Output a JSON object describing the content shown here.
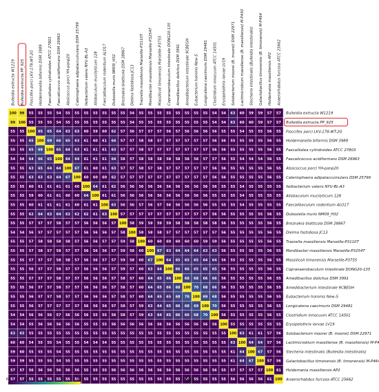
{
  "chart_data": {
    "type": "heatmap",
    "title": "",
    "xlabel": "",
    "ylabel": "",
    "panel_label": "(a)",
    "labels": [
      "Bulleidia extructa W1219",
      "Bulleidia extructa PP_925",
      "Floccifex porci LKV-178-WT-2G",
      "Holdemanella biformis DSM 3989",
      "Faecalitalea cylindroides ATCC 27803",
      "Faecalicoccus acidiformans DSM 26963",
      "Absicoccus porci YH-panp20",
      "Catenisphaera adipataccumulans DSM 25799",
      "Ileibacterium valens NYU-BL-A3",
      "Allobaculum mucilyticum 128",
      "Faecalibaculum rodentium ALO17",
      "Dubosiella muris NM09_H32",
      "Breznakia blatticola DSM 28867",
      "Dielma fastidiosa JC13",
      "Traorella massiliensis Marseille-P3110T",
      "Merdibacter massiliensis Marseille-P3254T",
      "Massilicoli timonensis Marseille-P3755",
      "Copranaerobaculum intestinale DONG20-135",
      "Amedibacillus dolichus DSM 3991",
      "Amedibacterium intestinale 9CBEGH",
      "Eubacterium hominis New-5",
      "Longicatena caecimuris DSM 29481",
      "Clostridium innocuum ATCC 14501",
      "Erysipelothrix larvae LV19",
      "Solobacterium moorei (B. moorei) DSM 22971",
      "Lactimicrobium massiliense (B. massiliensis) M-P430",
      "Stecheria intestinalis (Bulleidia intestinalis)",
      "Galactobacillus timonensis (B. timonensis) M-P464",
      "Holdemania massiliensis AP2",
      "Anaerorhabdus furcosa ATCC 25662"
    ],
    "matrix": [
      [
        100,
        99,
        55,
        55,
        55,
        54,
        55,
        55,
        55,
        55,
        55,
        55,
        55,
        54,
        55,
        55,
        55,
        55,
        55,
        55,
        55,
        55,
        54,
        54,
        63,
        60,
        59,
        59,
        57,
        57
      ],
      [
        99,
        100,
        55,
        55,
        55,
        54,
        55,
        55,
        55,
        55,
        55,
        55,
        55,
        54,
        55,
        55,
        55,
        55,
        55,
        55,
        55,
        55,
        54,
        54,
        63,
        60,
        60,
        59,
        57,
        57
      ],
      [
        55,
        55,
        100,
        65,
        65,
        64,
        63,
        63,
        60,
        59,
        60,
        62,
        57,
        56,
        57,
        57,
        57,
        56,
        57,
        56,
        56,
        56,
        56,
        55,
        55,
        54,
        55,
        55,
        56,
        55
      ],
      [
        55,
        55,
        65,
        100,
        69,
        66,
        65,
        63,
        61,
        60,
        61,
        64,
        57,
        57,
        58,
        58,
        57,
        57,
        57,
        57,
        57,
        57,
        56,
        56,
        55,
        55,
        55,
        55,
        56,
        55
      ],
      [
        55,
        55,
        65,
        69,
        100,
        65,
        64,
        63,
        61,
        61,
        61,
        63,
        57,
        57,
        58,
        57,
        57,
        57,
        57,
        57,
        57,
        57,
        56,
        56,
        55,
        55,
        55,
        55,
        56,
        55
      ],
      [
        54,
        54,
        64,
        66,
        65,
        100,
        64,
        64,
        61,
        61,
        61,
        64,
        58,
        57,
        58,
        58,
        58,
        58,
        58,
        58,
        58,
        57,
        57,
        56,
        55,
        54,
        54,
        54,
        56,
        55
      ],
      [
        55,
        55,
        63,
        65,
        64,
        64,
        100,
        67,
        61,
        60,
        61,
        63,
        57,
        57,
        58,
        57,
        58,
        57,
        57,
        57,
        57,
        57,
        56,
        56,
        55,
        55,
        55,
        55,
        56,
        55
      ],
      [
        55,
        55,
        63,
        63,
        63,
        64,
        67,
        100,
        60,
        60,
        60,
        62,
        57,
        57,
        57,
        57,
        57,
        57,
        57,
        57,
        57,
        57,
        56,
        56,
        55,
        55,
        55,
        55,
        56,
        55
      ],
      [
        55,
        55,
        60,
        61,
        61,
        61,
        61,
        60,
        100,
        64,
        61,
        62,
        56,
        56,
        56,
        56,
        56,
        56,
        56,
        56,
        56,
        56,
        56,
        55,
        55,
        54,
        55,
        55,
        55,
        55
      ],
      [
        55,
        55,
        59,
        60,
        61,
        61,
        60,
        60,
        64,
        100,
        61,
        61,
        56,
        56,
        56,
        56,
        56,
        56,
        56,
        56,
        56,
        56,
        55,
        55,
        55,
        54,
        55,
        55,
        55,
        55
      ],
      [
        55,
        55,
        60,
        61,
        61,
        61,
        61,
        60,
        61,
        61,
        100,
        63,
        56,
        56,
        57,
        56,
        57,
        56,
        56,
        56,
        56,
        56,
        55,
        55,
        55,
        54,
        55,
        55,
        55,
        55
      ],
      [
        55,
        55,
        62,
        64,
        63,
        64,
        63,
        62,
        62,
        61,
        63,
        100,
        57,
        57,
        57,
        57,
        57,
        57,
        57,
        57,
        57,
        57,
        56,
        56,
        55,
        55,
        55,
        55,
        56,
        55
      ],
      [
        55,
        55,
        57,
        57,
        57,
        58,
        57,
        57,
        56,
        56,
        56,
        57,
        100,
        58,
        59,
        59,
        59,
        59,
        58,
        58,
        58,
        58,
        58,
        56,
        55,
        55,
        55,
        55,
        56,
        55
      ],
      [
        54,
        54,
        56,
        57,
        57,
        57,
        57,
        57,
        56,
        56,
        56,
        57,
        58,
        100,
        58,
        58,
        58,
        57,
        57,
        57,
        57,
        57,
        57,
        56,
        55,
        55,
        55,
        55,
        56,
        55
      ],
      [
        55,
        55,
        57,
        58,
        58,
        58,
        58,
        57,
        56,
        56,
        57,
        57,
        59,
        58,
        100,
        60,
        60,
        60,
        60,
        60,
        60,
        59,
        59,
        56,
        55,
        55,
        55,
        55,
        56,
        55
      ],
      [
        55,
        55,
        57,
        58,
        57,
        58,
        57,
        57,
        56,
        56,
        56,
        57,
        59,
        58,
        60,
        100,
        67,
        63,
        64,
        64,
        64,
        63,
        63,
        56,
        55,
        55,
        55,
        55,
        56,
        55
      ],
      [
        55,
        55,
        57,
        57,
        57,
        58,
        58,
        57,
        56,
        56,
        57,
        57,
        59,
        58,
        60,
        67,
        100,
        64,
        65,
        65,
        65,
        64,
        64,
        56,
        55,
        55,
        55,
        55,
        56,
        55
      ],
      [
        55,
        55,
        56,
        57,
        57,
        58,
        57,
        57,
        56,
        56,
        56,
        57,
        59,
        57,
        60,
        63,
        64,
        100,
        66,
        66,
        65,
        65,
        65,
        56,
        55,
        55,
        55,
        55,
        56,
        55
      ],
      [
        55,
        55,
        57,
        57,
        57,
        58,
        57,
        57,
        56,
        56,
        56,
        57,
        58,
        57,
        60,
        64,
        65,
        66,
        100,
        68,
        68,
        66,
        66,
        56,
        55,
        55,
        55,
        55,
        56,
        55
      ],
      [
        55,
        55,
        56,
        57,
        57,
        58,
        57,
        57,
        56,
        56,
        56,
        57,
        58,
        57,
        60,
        64,
        65,
        66,
        68,
        100,
        70,
        68,
        66,
        56,
        55,
        55,
        55,
        55,
        56,
        55
      ],
      [
        55,
        55,
        56,
        57,
        57,
        58,
        57,
        57,
        56,
        56,
        56,
        57,
        58,
        57,
        60,
        64,
        65,
        65,
        68,
        70,
        100,
        69,
        68,
        56,
        55,
        55,
        55,
        55,
        56,
        55
      ],
      [
        55,
        55,
        56,
        57,
        57,
        57,
        57,
        57,
        56,
        56,
        56,
        57,
        58,
        57,
        59,
        63,
        64,
        65,
        66,
        68,
        69,
        100,
        70,
        56,
        55,
        55,
        55,
        55,
        56,
        55
      ],
      [
        54,
        54,
        56,
        56,
        56,
        57,
        56,
        56,
        56,
        55,
        55,
        56,
        58,
        57,
        59,
        63,
        64,
        65,
        66,
        66,
        68,
        70,
        100,
        56,
        55,
        55,
        55,
        55,
        56,
        55
      ],
      [
        54,
        54,
        55,
        56,
        56,
        56,
        56,
        56,
        55,
        55,
        55,
        56,
        56,
        56,
        56,
        56,
        56,
        56,
        56,
        56,
        56,
        56,
        56,
        100,
        55,
        55,
        55,
        55,
        55,
        55
      ],
      [
        63,
        63,
        55,
        55,
        55,
        55,
        55,
        55,
        55,
        55,
        55,
        55,
        55,
        55,
        55,
        55,
        55,
        55,
        55,
        55,
        55,
        55,
        55,
        55,
        100,
        63,
        61,
        61,
        57,
        56
      ],
      [
        60,
        60,
        54,
        55,
        55,
        54,
        55,
        55,
        54,
        54,
        54,
        55,
        55,
        55,
        55,
        55,
        55,
        55,
        55,
        55,
        55,
        55,
        55,
        55,
        63,
        100,
        64,
        64,
        57,
        56
      ],
      [
        59,
        60,
        55,
        55,
        55,
        54,
        55,
        55,
        55,
        55,
        55,
        55,
        55,
        55,
        55,
        55,
        55,
        55,
        55,
        55,
        55,
        55,
        55,
        55,
        61,
        64,
        100,
        67,
        57,
        56
      ],
      [
        59,
        59,
        55,
        55,
        55,
        54,
        55,
        55,
        55,
        55,
        55,
        55,
        55,
        55,
        55,
        55,
        55,
        55,
        55,
        55,
        55,
        55,
        55,
        55,
        61,
        64,
        67,
        100,
        57,
        56
      ],
      [
        57,
        57,
        56,
        56,
        56,
        56,
        56,
        56,
        55,
        55,
        55,
        56,
        56,
        56,
        56,
        56,
        56,
        56,
        56,
        56,
        56,
        56,
        56,
        55,
        57,
        57,
        57,
        57,
        100,
        61
      ],
      [
        57,
        57,
        55,
        55,
        55,
        55,
        55,
        55,
        55,
        55,
        55,
        55,
        55,
        55,
        55,
        55,
        55,
        55,
        55,
        55,
        55,
        55,
        55,
        55,
        56,
        56,
        56,
        56,
        61,
        100
      ]
    ],
    "highlighted": [
      "Bulleidia extructa PP_925"
    ],
    "color_scale": {
      "min": 60,
      "max": 100,
      "ticks": [
        60,
        70,
        80,
        90,
        100
      ],
      "colors": [
        "#440154",
        "#3b528b",
        "#21918c",
        "#5ec962",
        "#fde725"
      ],
      "low_color": "#440154"
    },
    "highlight_color": "#e0202a",
    "legend_position": "bottom-left"
  }
}
